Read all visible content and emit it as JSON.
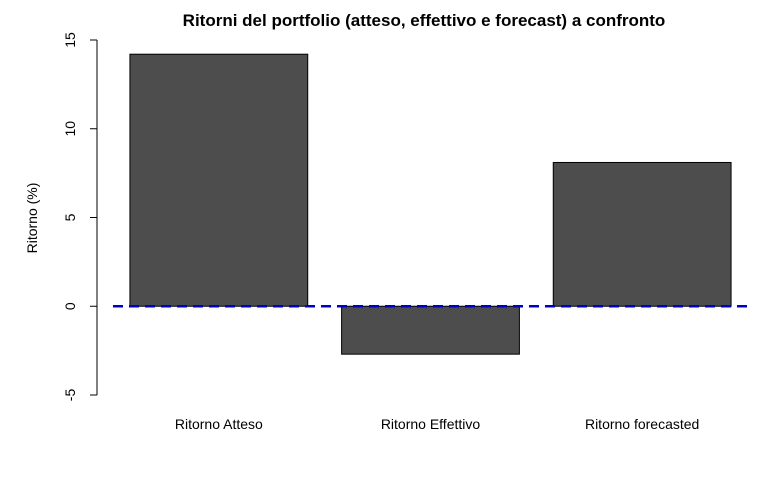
{
  "chart_data": {
    "type": "bar",
    "title": "Ritorni del portfolio (atteso, effettivo e forecast) a confronto",
    "xlabel": "",
    "ylabel": "Ritorno (%)",
    "categories": [
      "Ritorno Atteso",
      "Ritorno Effettivo",
      "Ritorno forecasted"
    ],
    "values": [
      14.2,
      -2.7,
      8.1
    ],
    "ylim": [
      -5,
      15
    ],
    "yticks": [
      -5,
      0,
      5,
      10,
      15
    ],
    "ytick_labels": [
      "-5",
      "0",
      "5",
      "10",
      "15"
    ],
    "reference_line": {
      "y": 0,
      "style": "dashed",
      "color": "#0000CC"
    },
    "bar_color": "#4D4D4D",
    "grid": false,
    "legend": "none"
  }
}
